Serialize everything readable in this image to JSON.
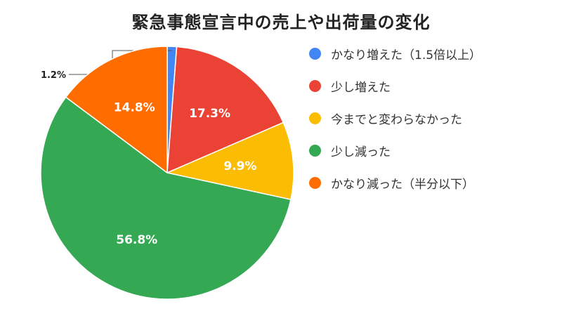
{
  "chart_data": {
    "type": "pie",
    "title": "緊急事態宣言中の売上や出荷量の変化",
    "legend_position": "right",
    "slices": [
      {
        "label": "かなり増えた（1.5倍以上）",
        "value": 1.2,
        "display": "1.2%",
        "color": "#4285F4"
      },
      {
        "label": "少し増えた",
        "value": 17.3,
        "display": "17.3%",
        "color": "#EA4335"
      },
      {
        "label": "今までと変わらなかった",
        "value": 9.9,
        "display": "9.9%",
        "color": "#FBBC04"
      },
      {
        "label": "少し減った",
        "value": 56.8,
        "display": "56.8%",
        "color": "#34A853"
      },
      {
        "label": "かなり減った（半分以下）",
        "value": 14.8,
        "display": "14.8%",
        "color": "#FF6D01"
      }
    ]
  }
}
